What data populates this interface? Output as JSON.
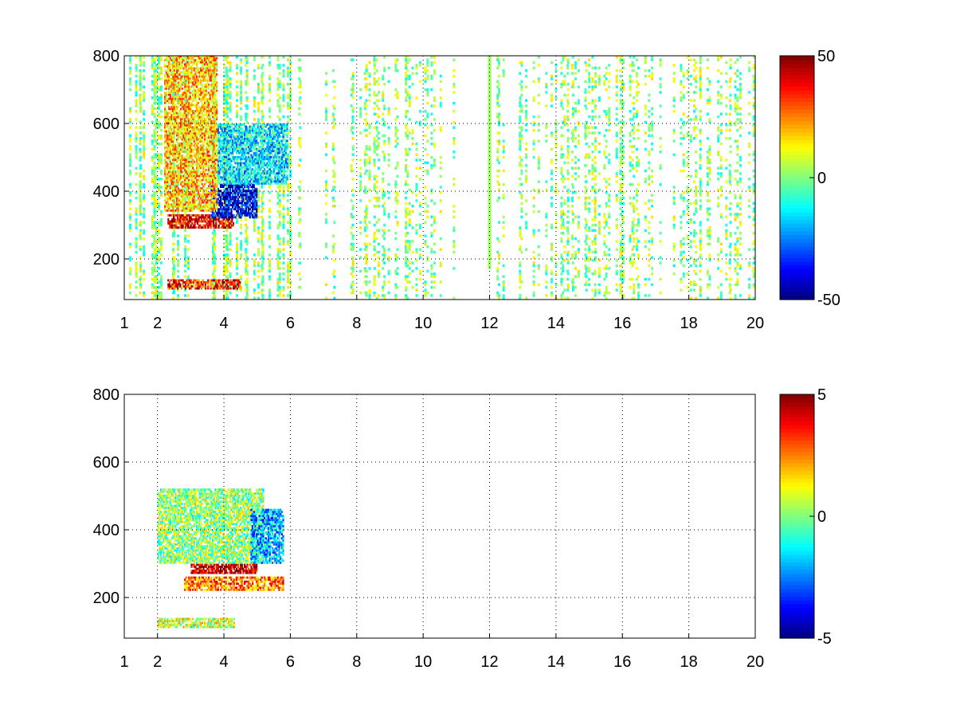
{
  "chart_data": [
    {
      "type": "heatmap",
      "title": "",
      "xlabel": "",
      "ylabel": "",
      "xlim": [
        1,
        20
      ],
      "ylim": [
        80,
        800
      ],
      "x_ticks": [
        1,
        2,
        4,
        6,
        8,
        10,
        12,
        14,
        16,
        18,
        20
      ],
      "x_tick_labels": [
        "1",
        "2",
        "4",
        "6",
        "8",
        "10",
        "12",
        "14",
        "16",
        "18",
        "20"
      ],
      "y_ticks": [
        200,
        400,
        600,
        800
      ],
      "y_tick_labels": [
        "200",
        "400",
        "600",
        "800"
      ],
      "grid": true,
      "colormap": "jet",
      "colorbar": {
        "position": "right",
        "limits": [
          -50,
          50
        ],
        "ticks": [
          50,
          0,
          -50
        ],
        "tick_labels": [
          "50",
          "0",
          "-50"
        ]
      },
      "features": [
        {
          "description_value": "positive band",
          "x_range": [
            2.3,
            4.3
          ],
          "y_range": [
            290,
            330
          ],
          "value": 40
        },
        {
          "description_value": "positive band",
          "x_range": [
            2.3,
            4.5
          ],
          "y_range": [
            110,
            140
          ],
          "value": 35
        },
        {
          "description_value": "negative region",
          "x_range": [
            3.6,
            5.0
          ],
          "y_range": [
            320,
            420
          ],
          "value": -40
        },
        {
          "description_value": "negative region",
          "x_range": [
            3.8,
            5.9
          ],
          "y_range": [
            420,
            600
          ],
          "value": -15
        },
        {
          "description_value": "warm region",
          "x_range": [
            2.2,
            3.8
          ],
          "y_range": [
            340,
            800
          ],
          "value": 18
        }
      ],
      "streaks": [
        {
          "x": 12.0,
          "y_range": [
            170,
            800
          ],
          "value": 3
        }
      ]
    },
    {
      "type": "heatmap",
      "title": "",
      "xlabel": "",
      "ylabel": "",
      "xlim": [
        1,
        20
      ],
      "ylim": [
        80,
        800
      ],
      "x_ticks": [
        1,
        2,
        4,
        6,
        8,
        10,
        12,
        14,
        16,
        18,
        20
      ],
      "x_tick_labels": [
        "1",
        "2",
        "4",
        "6",
        "8",
        "10",
        "12",
        "14",
        "16",
        "18",
        "20"
      ],
      "y_ticks": [
        200,
        400,
        600,
        800
      ],
      "y_tick_labels": [
        "200",
        "400",
        "600",
        "800"
      ],
      "grid": true,
      "colormap": "jet",
      "colorbar": {
        "position": "right",
        "limits": [
          -5,
          5
        ],
        "ticks": [
          5,
          0,
          -5
        ],
        "tick_labels": [
          "5",
          "0",
          "-5"
        ]
      },
      "features": [
        {
          "description_value": "positive band",
          "x_range": [
            3.0,
            5.0
          ],
          "y_range": [
            270,
            300
          ],
          "value": 4.5
        },
        {
          "description_value": "positive band",
          "x_range": [
            2.8,
            5.8
          ],
          "y_range": [
            220,
            260
          ],
          "value": 2.5
        },
        {
          "description_value": "low band",
          "x_range": [
            2.0,
            4.3
          ],
          "y_range": [
            110,
            140
          ],
          "value": 0.8
        },
        {
          "description_value": "neutral region",
          "x_range": [
            2.0,
            5.2
          ],
          "y_range": [
            300,
            520
          ],
          "value": 0.2
        },
        {
          "description_value": "negative region",
          "x_range": [
            4.8,
            5.8
          ],
          "y_range": [
            300,
            460
          ],
          "value": -2
        }
      ]
    }
  ]
}
